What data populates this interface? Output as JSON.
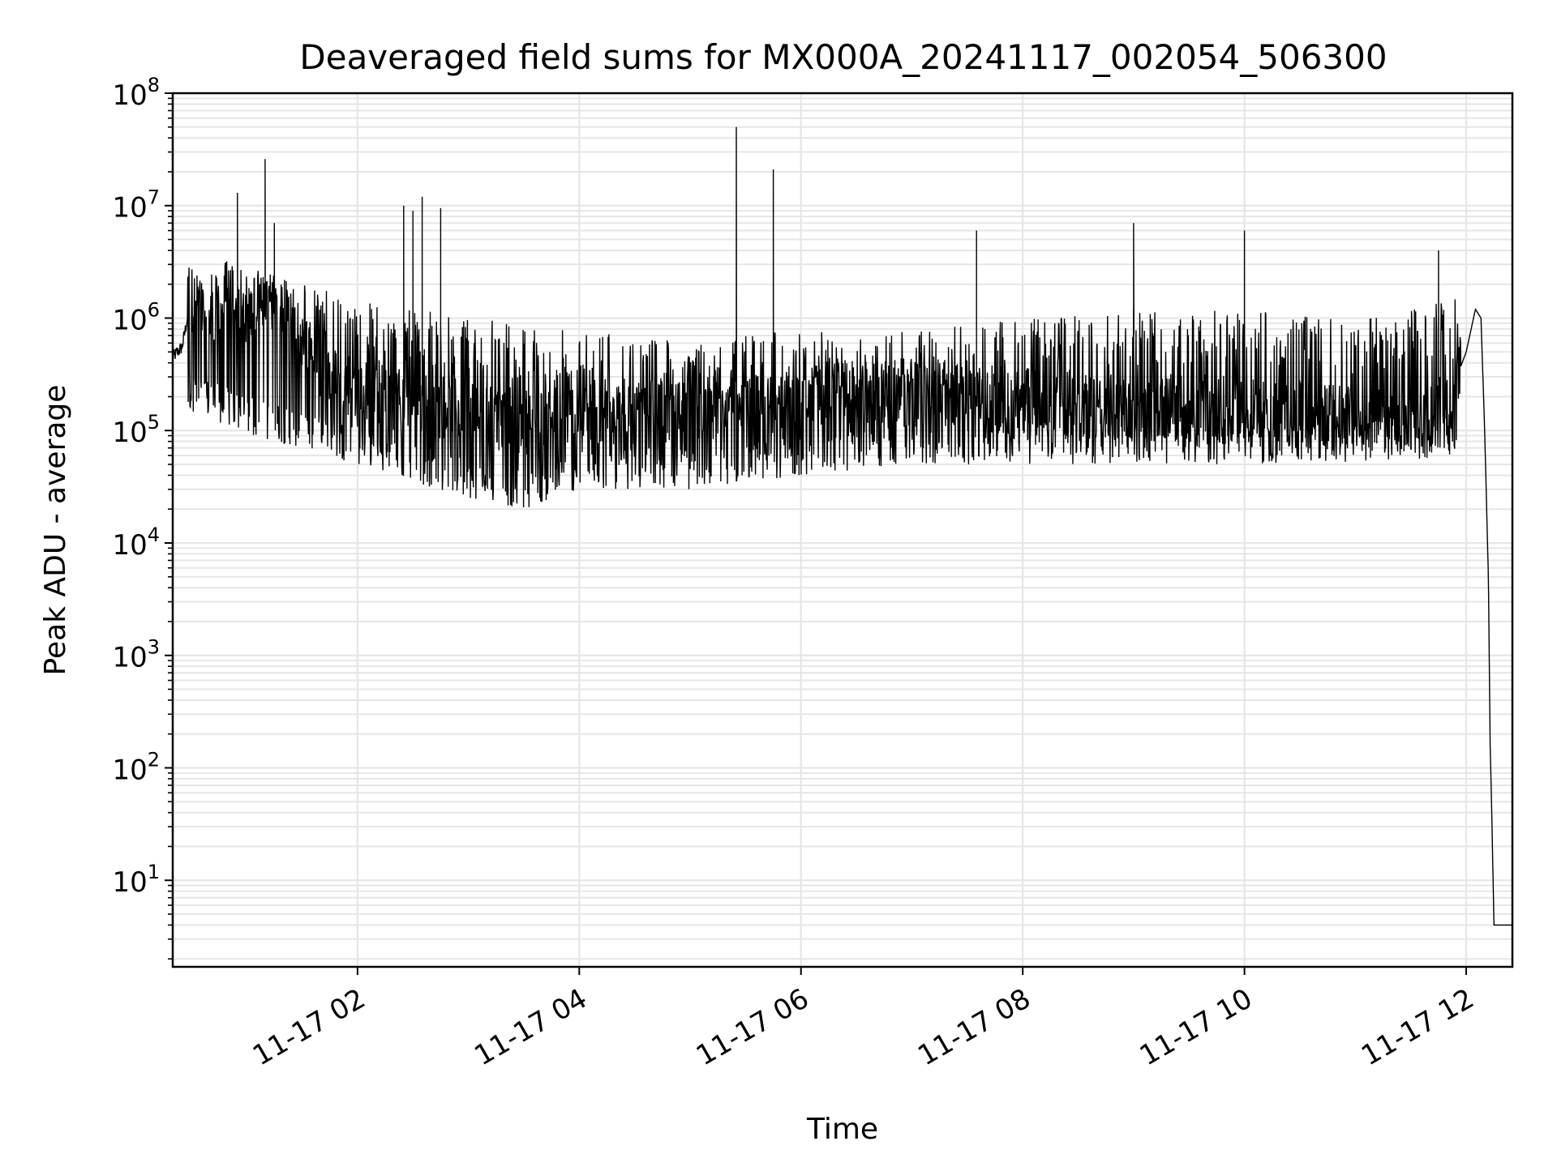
{
  "chart_data": {
    "type": "line",
    "title": "Deaveraged field sums for MX000A_20241117_002054_506300",
    "xlabel": "Time",
    "ylabel": "Peak ADU - average",
    "y_scale": "log",
    "xlim": [
      "2024-11-17 00:20",
      "2024-11-17 12:25"
    ],
    "ylim": [
      1.7,
      100000000
    ],
    "x_ticks": [
      {
        "t": "2024-11-17 02:00",
        "label": "11-17 02"
      },
      {
        "t": "2024-11-17 04:00",
        "label": "11-17 04"
      },
      {
        "t": "2024-11-17 06:00",
        "label": "11-17 06"
      },
      {
        "t": "2024-11-17 08:00",
        "label": "11-17 08"
      },
      {
        "t": "2024-11-17 10:00",
        "label": "11-17 10"
      },
      {
        "t": "2024-11-17 12:00",
        "label": "11-17 12"
      }
    ],
    "y_ticks": [
      {
        "value": 10,
        "base": "10",
        "exp": "1"
      },
      {
        "value": 100,
        "base": "10",
        "exp": "2"
      },
      {
        "value": 1000,
        "base": "10",
        "exp": "3"
      },
      {
        "value": 10000,
        "base": "10",
        "exp": "4"
      },
      {
        "value": 100000,
        "base": "10",
        "exp": "5"
      },
      {
        "value": 1000000,
        "base": "10",
        "exp": "6"
      },
      {
        "value": 10000000,
        "base": "10",
        "exp": "7"
      },
      {
        "value": 100000000,
        "base": "10",
        "exp": "8"
      }
    ],
    "grid": true,
    "grid_minor": true,
    "legend": "none",
    "line_color": "#000000",
    "grid_color": "#e6e6e6",
    "series": [
      {
        "points": [
          [
            "2024-11-17 00:20",
            450000
          ],
          [
            "2024-11-17 00:25",
            550000
          ],
          [
            "2024-11-17 00:30",
            1500000
          ],
          [
            "2024-11-17 00:40",
            900000
          ],
          [
            "2024-11-17 00:50",
            1800000
          ],
          [
            "2024-11-17 01:00",
            1200000
          ],
          [
            "2024-11-17 01:15",
            2000000
          ],
          [
            "2024-11-17 01:30",
            500000
          ],
          [
            "2024-11-17 01:45",
            300000
          ],
          [
            "2024-11-17 02:00",
            250000
          ],
          [
            "2024-11-17 02:30",
            180000
          ],
          [
            "2024-11-17 03:00",
            150000
          ],
          [
            "2024-11-17 03:30",
            120000
          ],
          [
            "2024-11-17 04:00",
            140000
          ],
          [
            "2024-11-17 04:30",
            130000
          ],
          [
            "2024-11-17 05:00",
            140000
          ],
          [
            "2024-11-17 05:30",
            150000
          ],
          [
            "2024-11-17 06:00",
            200000
          ],
          [
            "2024-11-17 06:30",
            220000
          ],
          [
            "2024-11-17 07:00",
            220000
          ],
          [
            "2024-11-17 07:30",
            200000
          ],
          [
            "2024-11-17 08:00",
            180000
          ],
          [
            "2024-11-17 08:30",
            170000
          ],
          [
            "2024-11-17 09:00",
            160000
          ],
          [
            "2024-11-17 09:30",
            160000
          ],
          [
            "2024-11-17 10:00",
            150000
          ],
          [
            "2024-11-17 10:30",
            140000
          ],
          [
            "2024-11-17 11:00",
            130000
          ],
          [
            "2024-11-17 11:20",
            120000
          ],
          [
            "2024-11-17 11:35",
            110000
          ],
          [
            "2024-11-17 11:50",
            180000
          ],
          [
            "2024-11-17 12:00",
            500000
          ],
          [
            "2024-11-17 12:05",
            1200000
          ],
          [
            "2024-11-17 12:08",
            1000000
          ],
          [
            "2024-11-17 12:10",
            100000
          ],
          [
            "2024-11-17 12:12",
            5000
          ],
          [
            "2024-11-17 12:13",
            150
          ],
          [
            "2024-11-17 12:14",
            30
          ],
          [
            "2024-11-17 12:15",
            4
          ],
          [
            "2024-11-17 12:25",
            4
          ]
        ],
        "spikes": [
          [
            "2024-11-17 00:55",
            13000000
          ],
          [
            "2024-11-17 01:10",
            26000000
          ],
          [
            "2024-11-17 01:15",
            7000000
          ],
          [
            "2024-11-17 02:25",
            10000000
          ],
          [
            "2024-11-17 02:30",
            9000000
          ],
          [
            "2024-11-17 02:35",
            12000000
          ],
          [
            "2024-11-17 02:45",
            9500000
          ],
          [
            "2024-11-17 05:25",
            50000000
          ],
          [
            "2024-11-17 05:45",
            21000000
          ],
          [
            "2024-11-17 07:35",
            6000000
          ],
          [
            "2024-11-17 09:00",
            7000000
          ],
          [
            "2024-11-17 10:00",
            6000000
          ],
          [
            "2024-11-17 11:45",
            4000000
          ]
        ],
        "noise": {
          "upper_envelope": [
            [
              "2024-11-17 00:30",
              4000000
            ],
            [
              "2024-11-17 01:30",
              2000000
            ],
            [
              "2024-11-17 02:00",
              1500000
            ],
            [
              "2024-11-17 03:00",
              1000000
            ],
            [
              "2024-11-17 04:00",
              800000
            ],
            [
              "2024-11-17 05:00",
              600000
            ],
            [
              "2024-11-17 06:00",
              800000
            ],
            [
              "2024-11-17 07:00",
              800000
            ],
            [
              "2024-11-17 08:00",
              1000000
            ],
            [
              "2024-11-17 09:00",
              1200000
            ],
            [
              "2024-11-17 10:00",
              1200000
            ],
            [
              "2024-11-17 11:00",
              1000000
            ],
            [
              "2024-11-17 11:55",
              1500000
            ]
          ],
          "lower_envelope": [
            [
              "2024-11-17 00:30",
              150000
            ],
            [
              "2024-11-17 01:00",
              90000
            ],
            [
              "2024-11-17 01:30",
              70000
            ],
            [
              "2024-11-17 02:00",
              50000
            ],
            [
              "2024-11-17 02:30",
              35000
            ],
            [
              "2024-11-17 03:00",
              25000
            ],
            [
              "2024-11-17 03:30",
              20000
            ],
            [
              "2024-11-17 04:00",
              30000
            ],
            [
              "2024-11-17 05:00",
              30000
            ],
            [
              "2024-11-17 06:00",
              40000
            ],
            [
              "2024-11-17 07:00",
              50000
            ],
            [
              "2024-11-17 08:00",
              50000
            ],
            [
              "2024-11-17 09:00",
              50000
            ],
            [
              "2024-11-17 10:00",
              50000
            ],
            [
              "2024-11-17 11:00",
              50000
            ],
            [
              "2024-11-17 11:55",
              60000
            ]
          ]
        }
      }
    ]
  }
}
